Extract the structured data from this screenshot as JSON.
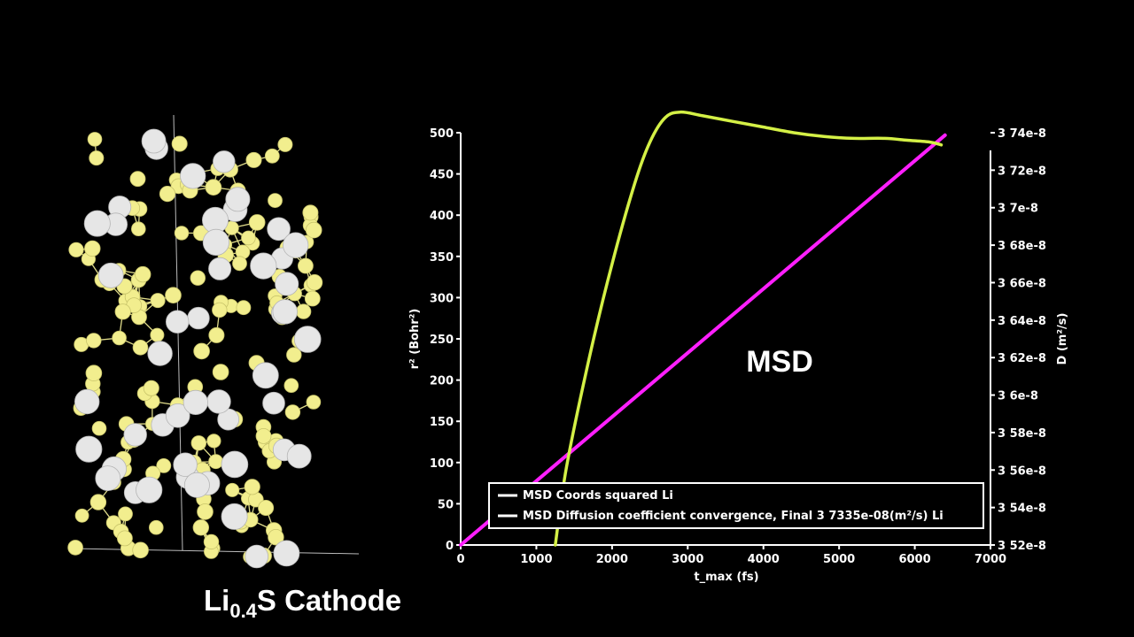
{
  "structure": {
    "caption_main": "Li",
    "caption_sub": "0.4",
    "caption_rest": "S Cathode",
    "colors": {
      "sulfur": "#f2ee8e",
      "lithium": "#e6e6e6",
      "bond": "#e0dc8a"
    }
  },
  "chart_data": {
    "type": "line",
    "annotation": "MSD",
    "xlabel": "t_max (fs)",
    "ylabel_left": "r² (Bohr²)",
    "ylabel_right": "D (m²/s)",
    "xlim": [
      0,
      7000
    ],
    "ylim_left": [
      0,
      500
    ],
    "ylim_right": [
      3.52e-08,
      3.74e-08
    ],
    "x_ticks": [
      0,
      1000,
      2000,
      3000,
      4000,
      5000,
      6000,
      7000
    ],
    "y_ticks_left": [
      0,
      50,
      100,
      150,
      200,
      250,
      300,
      350,
      400,
      450,
      500
    ],
    "y_ticks_right": [
      3.52e-08,
      3.54e-08,
      3.56e-08,
      3.58e-08,
      3.6e-08,
      3.62e-08,
      3.64e-08,
      3.66e-08,
      3.68e-08,
      3.7e-08,
      3.72e-08,
      3.74e-08
    ],
    "x_tick_labels": [
      "0",
      "1000",
      "2000",
      "3000",
      "4000",
      "5000",
      "6000",
      "7000"
    ],
    "y_tick_labels_left": [
      "0",
      "50",
      "100",
      "150",
      "200",
      "250",
      "300",
      "350",
      "400",
      "450",
      "500"
    ],
    "y_tick_labels_right": [
      "3 52e-8",
      "3 54e-8",
      "3 56e-8",
      "3 58e-8",
      "3 6e-8",
      "3 62e-8",
      "3 64e-8",
      "3 66e-8",
      "3 68e-8",
      "3 7e-8",
      "3 72e-8",
      "3 74e-8"
    ],
    "legend_placement": "bottom-center",
    "series": [
      {
        "name": "MSD Coords squared Li",
        "color": "#ff1fff",
        "axis": "left",
        "x": [
          0,
          6400
        ],
        "y": [
          0,
          497
        ]
      },
      {
        "name": "MSD Diffusion coefficient convergence, Final 3 7335e-08(m²/s) Li",
        "color": "#d4f046",
        "axis": "right",
        "x": [
          1250,
          1400,
          1700,
          2000,
          2300,
          2500,
          2700,
          2900,
          3200,
          3600,
          4000,
          4400,
          4800,
          5200,
          5600,
          5900,
          6200,
          6350
        ],
        "y": [
          3.52e-08,
          3.562e-08,
          3.62e-08,
          3.67e-08,
          3.713e-08,
          3.735e-08,
          3.748e-08,
          3.751e-08,
          3.749e-08,
          3.746e-08,
          3.743e-08,
          3.74e-08,
          3.738e-08,
          3.737e-08,
          3.737e-08,
          3.736e-08,
          3.735e-08,
          3.7335e-08
        ]
      }
    ]
  }
}
